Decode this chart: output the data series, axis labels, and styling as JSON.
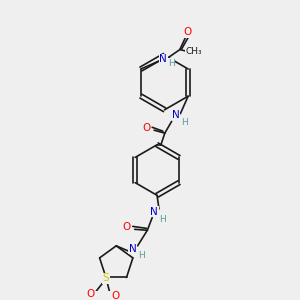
{
  "bg_color": "#efefef",
  "bond_color": "#1a1a1a",
  "atom_colors": {
    "O": "#ff0000",
    "N": "#0000cc",
    "S": "#cccc00",
    "C": "#1a1a1a",
    "H": "#5a9a9a"
  },
  "font_size_atom": 7.5,
  "font_size_small": 6.5,
  "lw": 1.2
}
